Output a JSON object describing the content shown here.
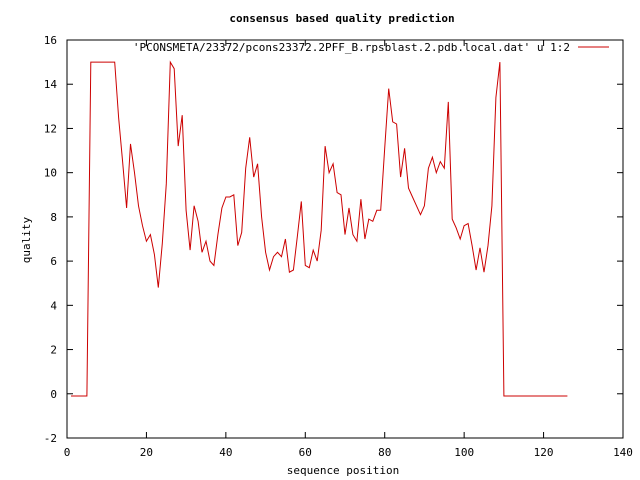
{
  "chart_data": {
    "type": "line",
    "title": "consensus based quality prediction",
    "xlabel": "sequence position",
    "ylabel": "quality",
    "xlim": [
      0,
      140
    ],
    "ylim": [
      -2,
      16
    ],
    "xticks": [
      0,
      20,
      40,
      60,
      80,
      100,
      120,
      140
    ],
    "yticks": [
      -2,
      0,
      2,
      4,
      6,
      8,
      10,
      12,
      14,
      16
    ],
    "grid": false,
    "legend_position": "top-right",
    "series": [
      {
        "name": "'PCONSMETA/23372/pcons23372.2PFF_B.rpsblast.2.pdb.local.dat' u 1:2",
        "color": "#cc0000",
        "x": [
          1,
          2,
          3,
          4,
          5,
          6,
          7,
          8,
          9,
          10,
          11,
          12,
          13,
          14,
          15,
          16,
          17,
          18,
          19,
          20,
          21,
          22,
          23,
          24,
          25,
          26,
          27,
          28,
          29,
          30,
          31,
          32,
          33,
          34,
          35,
          36,
          37,
          38,
          39,
          40,
          41,
          42,
          43,
          44,
          45,
          46,
          47,
          48,
          49,
          50,
          51,
          52,
          53,
          54,
          55,
          56,
          57,
          58,
          59,
          60,
          61,
          62,
          63,
          64,
          65,
          66,
          67,
          68,
          69,
          70,
          71,
          72,
          73,
          74,
          75,
          76,
          77,
          78,
          79,
          80,
          81,
          82,
          83,
          84,
          85,
          86,
          87,
          88,
          89,
          90,
          91,
          92,
          93,
          94,
          95,
          96,
          97,
          98,
          99,
          100,
          101,
          102,
          103,
          104,
          105,
          106,
          107,
          108,
          109,
          110,
          111,
          112,
          113,
          114,
          115,
          116,
          117,
          118,
          119,
          120,
          121,
          122,
          123,
          124,
          125,
          126
        ],
        "y": [
          -0.1,
          -0.1,
          -0.1,
          -0.1,
          -0.1,
          15,
          15,
          15,
          15,
          15,
          15,
          15,
          12.5,
          10.5,
          8.4,
          11.3,
          10,
          8.5,
          7.6,
          6.9,
          7.2,
          6.3,
          4.8,
          6.8,
          9.5,
          15,
          14.7,
          11.2,
          12.6,
          8.3,
          6.5,
          8.5,
          7.8,
          6.4,
          6.9,
          6,
          5.8,
          7.2,
          8.4,
          8.9,
          8.9,
          9,
          6.7,
          7.3,
          10.2,
          11.6,
          9.8,
          10.4,
          8,
          6.4,
          5.6,
          6.2,
          6.4,
          6.2,
          7,
          5.5,
          5.6,
          7.1,
          8.7,
          5.8,
          5.7,
          6.5,
          6,
          7.4,
          11.2,
          10,
          10.4,
          9.1,
          9,
          7.2,
          8.4,
          7.2,
          6.9,
          8.8,
          7,
          7.9,
          7.8,
          8.3,
          8.3,
          11.1,
          13.8,
          12.3,
          12.2,
          9.8,
          11.1,
          9.3,
          8.9,
          8.5,
          8.1,
          8.5,
          10.2,
          10.7,
          10,
          10.5,
          10.2,
          13.2,
          7.9,
          7.5,
          7,
          7.6,
          7.7,
          6.7,
          5.6,
          6.6,
          5.5,
          6.7,
          8.5,
          13.4,
          15,
          -0.1,
          -0.1,
          -0.1,
          -0.1,
          -0.1,
          -0.1,
          -0.1,
          -0.1,
          -0.1,
          -0.1,
          -0.1,
          -0.1,
          -0.1,
          -0.1,
          -0.1,
          -0.1,
          -0.1
        ]
      }
    ]
  }
}
